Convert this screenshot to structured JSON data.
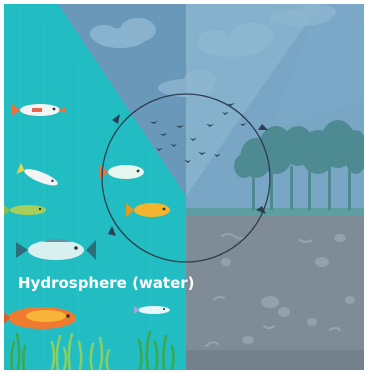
{
  "diagram": {
    "label": "Hydrosphere (water)"
  },
  "colors": {
    "frame_border": "#ffffff",
    "water": "#25bfc3",
    "water_dark": "#1aa6ad",
    "sky_top": "#6f9fbf",
    "sky_bottom": "#83aecb",
    "sky_left_wedge": "#5f8fae",
    "land": "#7e8b97",
    "land_detail": "#93a0ab",
    "grass_strip": "#5fa3a6",
    "trees": "#4f8a93",
    "circle_outline": "#2c3e50",
    "bird": "#2d4a5a",
    "label": "#ffffff",
    "seaweed_light": "#8ad36a",
    "seaweed_dark": "#3aa84e"
  },
  "icons": {
    "fish": "fish-icon",
    "bird": "bird-icon",
    "tree": "tree-icon",
    "cloud": "cloud-icon",
    "seaweed": "seaweed-icon",
    "rock": "rock-icon",
    "worm": "worm-icon"
  }
}
